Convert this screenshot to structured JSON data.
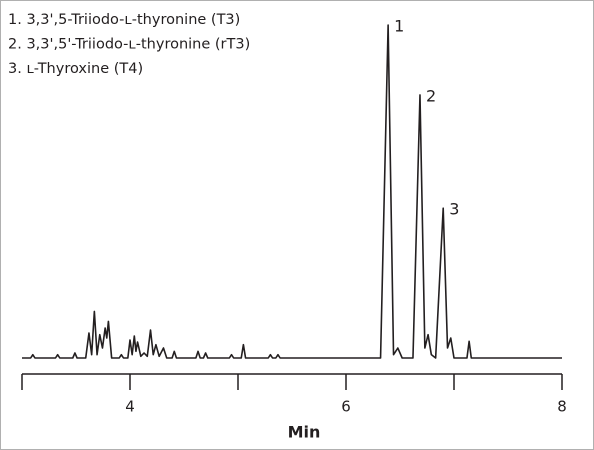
{
  "chart_data": {
    "type": "line",
    "legend_items": [
      "1. 3,3',5-Triiodo-ʟ-thyronine (T3)",
      "2. 3,3',5'-Triiodo-ʟ-thyronine (rT3)",
      "3. ʟ-Thyroxine (T4)"
    ],
    "x_label": "Min",
    "xlim": [
      3,
      8
    ],
    "xticks": [
      4,
      6,
      8
    ],
    "xminor_ticks": [
      3,
      5,
      7
    ],
    "ylim": [
      0,
      100
    ],
    "color": "#231f20",
    "x": [
      3.0,
      3.08,
      3.1,
      3.12,
      3.31,
      3.33,
      3.35,
      3.47,
      3.49,
      3.51,
      3.59,
      3.62,
      3.645,
      3.67,
      3.695,
      3.72,
      3.745,
      3.77,
      3.785,
      3.8,
      3.83,
      3.9,
      3.92,
      3.94,
      3.98,
      4.0,
      4.02,
      4.04,
      4.055,
      4.07,
      4.1,
      4.13,
      4.16,
      4.19,
      4.215,
      4.24,
      4.27,
      4.31,
      4.34,
      4.39,
      4.41,
      4.43,
      4.61,
      4.63,
      4.65,
      4.68,
      4.7,
      4.72,
      4.92,
      4.94,
      4.96,
      5.03,
      5.05,
      5.07,
      5.28,
      5.3,
      5.32,
      5.35,
      5.37,
      5.39,
      6.32,
      6.39,
      6.44,
      6.48,
      6.52,
      6.62,
      6.685,
      6.73,
      6.76,
      6.79,
      6.83,
      6.9,
      6.94,
      6.97,
      7.0,
      7.12,
      7.14,
      7.16,
      8.0
    ],
    "values": [
      0,
      0,
      1,
      0,
      0,
      1,
      0,
      0,
      1.5,
      0,
      0,
      7.5,
      1,
      14,
      1,
      7,
      3,
      9,
      6,
      11,
      0,
      0,
      1,
      0,
      0,
      5.4,
      1,
      6.6,
      2,
      4.8,
      0.5,
      1.5,
      0.5,
      8.4,
      1,
      4,
      0.5,
      3,
      0,
      0,
      2,
      0,
      0,
      2,
      0,
      0,
      1.5,
      0,
      0,
      1,
      0,
      0,
      4,
      0,
      0,
      1,
      0,
      0,
      1,
      0,
      0,
      100,
      1,
      3,
      0,
      0,
      79,
      3,
      7,
      1,
      0,
      45,
      3,
      6,
      0,
      0,
      5,
      0,
      0
    ],
    "annotations": [
      {
        "text": "1",
        "x": 6.39,
        "y": 100
      },
      {
        "text": "2",
        "x": 6.685,
        "y": 79
      },
      {
        "text": "3",
        "x": 6.9,
        "y": 45
      }
    ]
  }
}
